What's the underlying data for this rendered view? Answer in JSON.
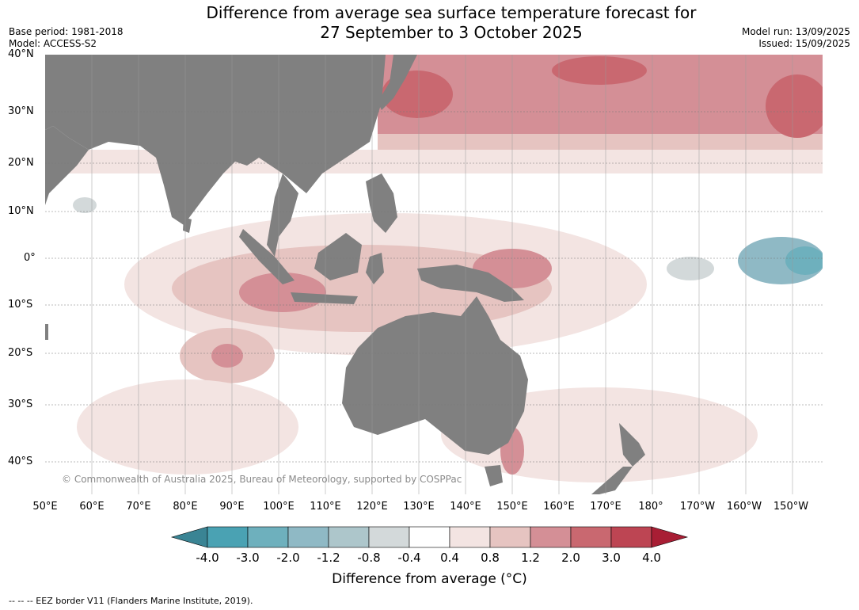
{
  "title": {
    "line1": "Difference from average sea surface temperature forecast for",
    "line2": "27 September to 3 October 2025"
  },
  "meta": {
    "base_period": "Base period: 1981-2018",
    "model": "Model: ACCESS-S2",
    "model_run": "Model run: 13/09/2025",
    "issued": "Issued: 15/09/2025"
  },
  "map": {
    "lat_labels": [
      "40°N",
      "30°N",
      "20°N",
      "10°N",
      "0°",
      "10°S",
      "20°S",
      "30°S",
      "40°S"
    ],
    "lon_labels": [
      "50°E",
      "60°E",
      "70°E",
      "80°E",
      "90°E",
      "100°E",
      "110°E",
      "120°E",
      "130°E",
      "140°E",
      "150°E",
      "160°E",
      "170°E",
      "180°",
      "170°W",
      "160°W",
      "150°W"
    ],
    "copyright": "© Commonwealth of Australia 2025, Bureau of Meteorology, supported by COSPPac",
    "land_color": "#808080",
    "ocean_color": "#ffffff"
  },
  "colorbar": {
    "title": "Difference from average (°C)",
    "tick_labels": [
      "-4.0",
      "-3.0",
      "-2.0",
      "-1.2",
      "-0.8",
      "-0.4",
      "0.4",
      "0.8",
      "1.2",
      "2.0",
      "3.0",
      "4.0"
    ],
    "colors": [
      "#3a8494",
      "#4aa2b3",
      "#6eb0bd",
      "#8fb9c5",
      "#adc6cb",
      "#d3d9da",
      "#ffffff",
      "#f3e4e2",
      "#e6c4c1",
      "#d48f96",
      "#c96870",
      "#bd4553",
      "#a81e34"
    ]
  },
  "footer": "--  --  -- EEZ border V11 (Flanders Marine Institute, 2019)."
}
